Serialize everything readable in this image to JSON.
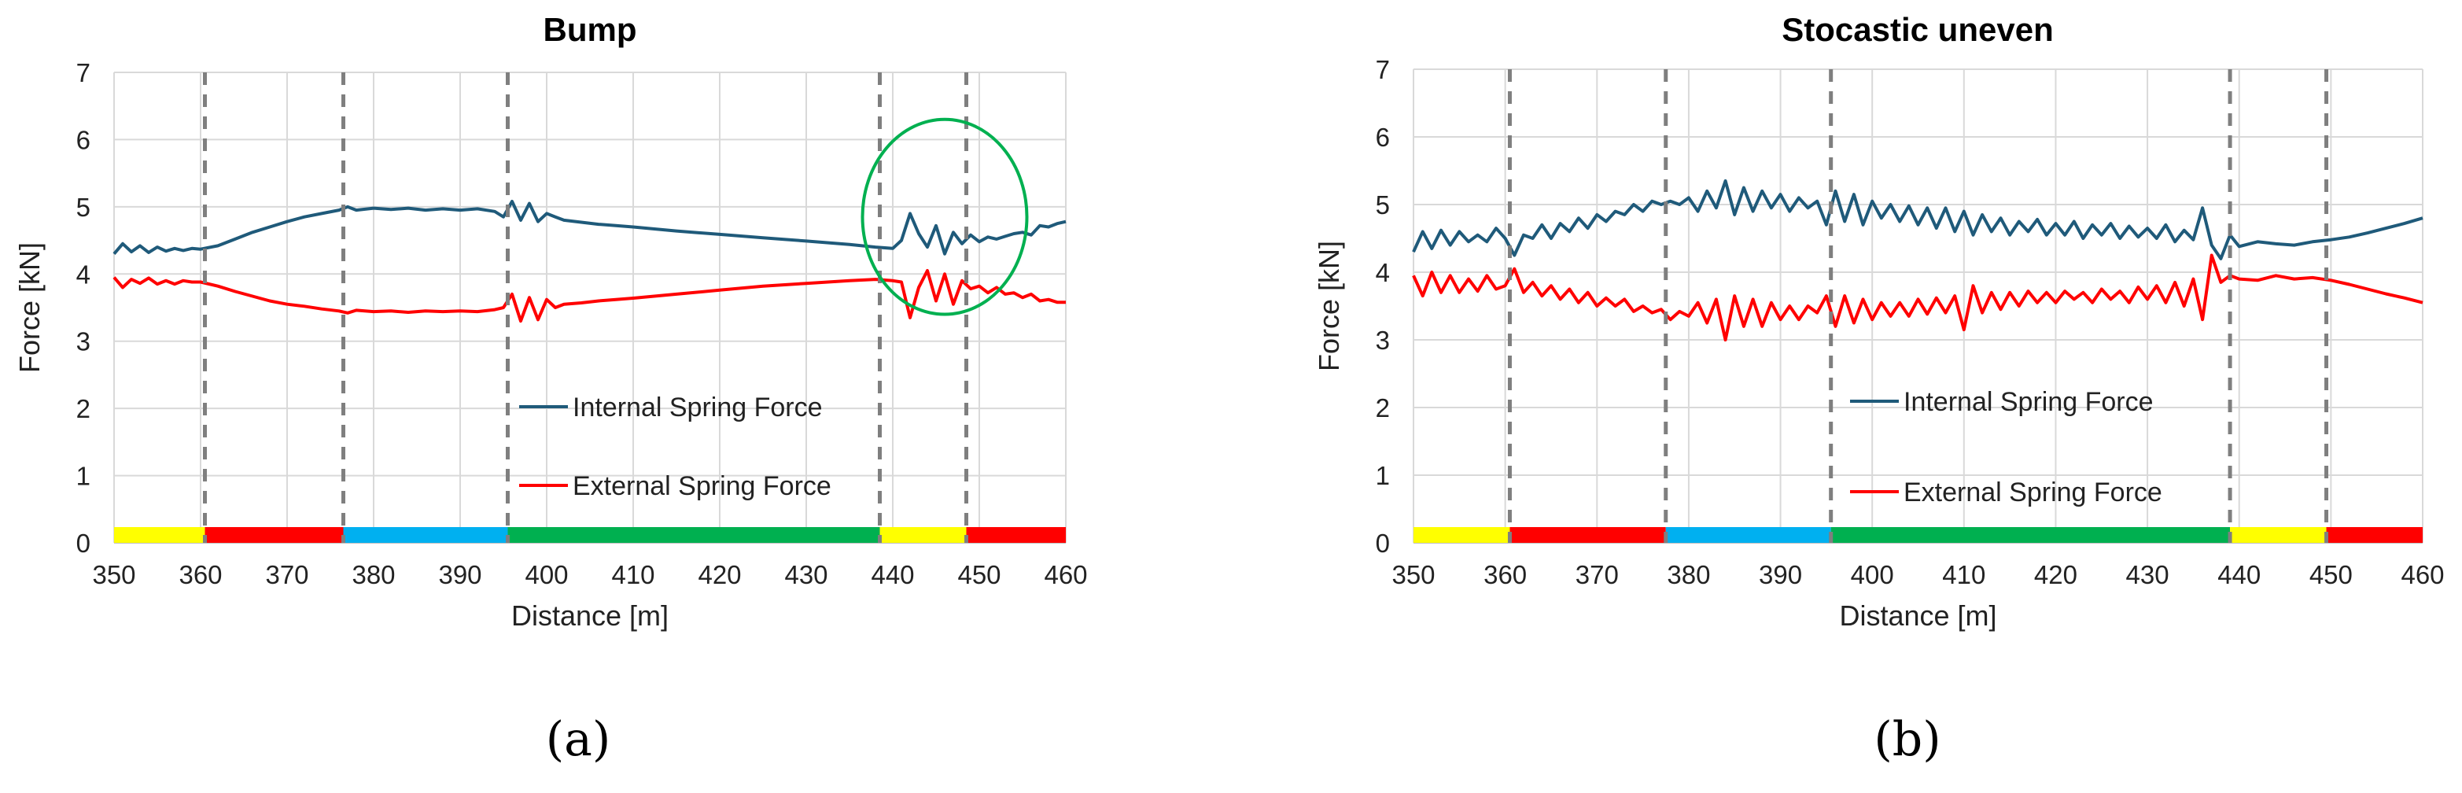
{
  "chart_data": [
    {
      "type": "line",
      "panel_label": "(a)",
      "title": "Bump",
      "xlabel": "Distance [m]",
      "ylabel": "Force [kN]",
      "xlim": [
        350,
        460
      ],
      "ylim": [
        0,
        7
      ],
      "xticks": [
        350,
        360,
        370,
        380,
        390,
        400,
        410,
        420,
        430,
        440,
        450,
        460
      ],
      "yticks": [
        0,
        1,
        2,
        3,
        4,
        5,
        6,
        7
      ],
      "grid": true,
      "legend_position": "center-right",
      "vertical_dashed_lines": [
        360.5,
        376.5,
        395.5,
        438.5,
        448.5
      ],
      "track_segments": [
        {
          "from": 350,
          "to": 360.5,
          "color": "#ffff00"
        },
        {
          "from": 360.5,
          "to": 376.5,
          "color": "#ff0000"
        },
        {
          "from": 376.5,
          "to": 395.5,
          "color": "#00b0f0"
        },
        {
          "from": 395.5,
          "to": 438.5,
          "color": "#00b050"
        },
        {
          "from": 438.5,
          "to": 448.5,
          "color": "#ffff00"
        },
        {
          "from": 448.5,
          "to": 460,
          "color": "#ff0000"
        }
      ],
      "annotation_ellipse": {
        "cx": 446,
        "cy": 4.85,
        "rx": 9.5,
        "ry": 1.45,
        "color": "#00b050"
      },
      "series": [
        {
          "name": "Internal Spring Force",
          "color": "#1f5a7a",
          "x": [
            350,
            351,
            352,
            353,
            354,
            355,
            356,
            357,
            358,
            359,
            360,
            362,
            364,
            366,
            368,
            370,
            372,
            374,
            376,
            377,
            378,
            380,
            382,
            384,
            386,
            388,
            390,
            392,
            394,
            395,
            396,
            397,
            398,
            399,
            400,
            401,
            402,
            404,
            406,
            408,
            410,
            415,
            420,
            425,
            430,
            435,
            438,
            440,
            441,
            442,
            443,
            444,
            445,
            446,
            447,
            448,
            449,
            450,
            451,
            452,
            453,
            454,
            455,
            456,
            457,
            458,
            459,
            460
          ],
          "y": [
            4.3,
            4.45,
            4.33,
            4.42,
            4.32,
            4.4,
            4.34,
            4.38,
            4.35,
            4.38,
            4.37,
            4.42,
            4.52,
            4.62,
            4.7,
            4.78,
            4.85,
            4.9,
            4.95,
            5.0,
            4.95,
            4.98,
            4.96,
            4.98,
            4.95,
            4.97,
            4.95,
            4.97,
            4.93,
            4.85,
            5.08,
            4.8,
            5.05,
            4.78,
            4.9,
            4.85,
            4.8,
            4.77,
            4.74,
            4.72,
            4.7,
            4.64,
            4.59,
            4.54,
            4.49,
            4.44,
            4.4,
            4.38,
            4.5,
            4.9,
            4.6,
            4.4,
            4.72,
            4.3,
            4.62,
            4.45,
            4.58,
            4.48,
            4.55,
            4.52,
            4.56,
            4.6,
            4.62,
            4.58,
            4.72,
            4.7,
            4.75,
            4.78
          ]
        },
        {
          "name": "External Spring Force",
          "color": "#ff0000",
          "x": [
            350,
            351,
            352,
            353,
            354,
            355,
            356,
            357,
            358,
            359,
            360,
            362,
            364,
            366,
            368,
            370,
            372,
            374,
            376,
            377,
            378,
            380,
            382,
            384,
            386,
            388,
            390,
            392,
            394,
            395,
            396,
            397,
            398,
            399,
            400,
            401,
            402,
            404,
            406,
            408,
            410,
            415,
            420,
            425,
            430,
            435,
            438,
            440,
            441,
            442,
            443,
            444,
            445,
            446,
            447,
            448,
            449,
            450,
            451,
            452,
            453,
            454,
            455,
            456,
            457,
            458,
            459,
            460
          ],
          "y": [
            3.95,
            3.8,
            3.92,
            3.86,
            3.94,
            3.85,
            3.9,
            3.85,
            3.9,
            3.88,
            3.88,
            3.82,
            3.74,
            3.67,
            3.6,
            3.55,
            3.52,
            3.48,
            3.45,
            3.42,
            3.46,
            3.44,
            3.45,
            3.43,
            3.45,
            3.44,
            3.45,
            3.44,
            3.47,
            3.5,
            3.7,
            3.3,
            3.65,
            3.32,
            3.62,
            3.5,
            3.55,
            3.57,
            3.6,
            3.62,
            3.64,
            3.7,
            3.76,
            3.82,
            3.86,
            3.9,
            3.92,
            3.9,
            3.88,
            3.35,
            3.8,
            4.05,
            3.6,
            4.0,
            3.55,
            3.9,
            3.78,
            3.82,
            3.72,
            3.8,
            3.7,
            3.72,
            3.65,
            3.7,
            3.6,
            3.62,
            3.58,
            3.58
          ]
        }
      ]
    },
    {
      "type": "line",
      "panel_label": "(b)",
      "title": "Stocastic uneven",
      "xlabel": "Distance [m]",
      "ylabel": "Force [kN]",
      "xlim": [
        350,
        460
      ],
      "ylim": [
        0,
        7
      ],
      "xticks": [
        350,
        360,
        370,
        380,
        390,
        400,
        410,
        420,
        430,
        440,
        450,
        460
      ],
      "yticks": [
        0,
        1,
        2,
        3,
        4,
        5,
        6,
        7
      ],
      "grid": true,
      "legend_position": "center-right",
      "vertical_dashed_lines": [
        360.5,
        377.5,
        395.5,
        439,
        449.5
      ],
      "track_segments": [
        {
          "from": 350,
          "to": 360.5,
          "color": "#ffff00"
        },
        {
          "from": 360.5,
          "to": 377.5,
          "color": "#ff0000"
        },
        {
          "from": 377.5,
          "to": 395.5,
          "color": "#00b0f0"
        },
        {
          "from": 395.5,
          "to": 439,
          "color": "#00b050"
        },
        {
          "from": 439,
          "to": 449.5,
          "color": "#ffff00"
        },
        {
          "from": 449.5,
          "to": 460,
          "color": "#ff0000"
        }
      ],
      "series": [
        {
          "name": "Internal Spring Force",
          "color": "#1f5a7a",
          "x": [
            350,
            351,
            352,
            353,
            354,
            355,
            356,
            357,
            358,
            359,
            360,
            361,
            362,
            363,
            364,
            365,
            366,
            367,
            368,
            369,
            370,
            371,
            372,
            373,
            374,
            375,
            376,
            377,
            378,
            379,
            380,
            381,
            382,
            383,
            384,
            385,
            386,
            387,
            388,
            389,
            390,
            391,
            392,
            393,
            394,
            395,
            396,
            397,
            398,
            399,
            400,
            401,
            402,
            403,
            404,
            405,
            406,
            407,
            408,
            409,
            410,
            411,
            412,
            413,
            414,
            415,
            416,
            417,
            418,
            419,
            420,
            421,
            422,
            423,
            424,
            425,
            426,
            427,
            428,
            429,
            430,
            431,
            432,
            433,
            434,
            435,
            436,
            437,
            438,
            439,
            440,
            442,
            444,
            446,
            448,
            450,
            452,
            454,
            456,
            458,
            460
          ],
          "y": [
            4.3,
            4.6,
            4.35,
            4.62,
            4.4,
            4.6,
            4.45,
            4.55,
            4.45,
            4.65,
            4.5,
            4.25,
            4.55,
            4.5,
            4.7,
            4.5,
            4.72,
            4.6,
            4.8,
            4.65,
            4.85,
            4.75,
            4.9,
            4.85,
            5.0,
            4.9,
            5.05,
            5.0,
            5.05,
            5.0,
            5.1,
            4.9,
            5.2,
            4.95,
            5.35,
            4.85,
            5.25,
            4.9,
            5.2,
            4.95,
            5.15,
            4.9,
            5.1,
            4.95,
            5.05,
            4.7,
            5.2,
            4.75,
            5.15,
            4.7,
            5.05,
            4.8,
            5.0,
            4.75,
            4.98,
            4.7,
            4.95,
            4.65,
            4.95,
            4.6,
            4.9,
            4.55,
            4.85,
            4.6,
            4.8,
            4.55,
            4.75,
            4.6,
            4.78,
            4.55,
            4.72,
            4.55,
            4.75,
            4.5,
            4.7,
            4.55,
            4.72,
            4.5,
            4.68,
            4.52,
            4.65,
            4.5,
            4.7,
            4.45,
            4.62,
            4.48,
            4.95,
            4.4,
            4.2,
            4.55,
            4.38,
            4.45,
            4.42,
            4.4,
            4.45,
            4.48,
            4.52,
            4.58,
            4.65,
            4.72,
            4.8
          ]
        },
        {
          "name": "External Spring Force",
          "color": "#ff0000",
          "x": [
            350,
            351,
            352,
            353,
            354,
            355,
            356,
            357,
            358,
            359,
            360,
            361,
            362,
            363,
            364,
            365,
            366,
            367,
            368,
            369,
            370,
            371,
            372,
            373,
            374,
            375,
            376,
            377,
            378,
            379,
            380,
            381,
            382,
            383,
            384,
            385,
            386,
            387,
            388,
            389,
            390,
            391,
            392,
            393,
            394,
            395,
            396,
            397,
            398,
            399,
            400,
            401,
            402,
            403,
            404,
            405,
            406,
            407,
            408,
            409,
            410,
            411,
            412,
            413,
            414,
            415,
            416,
            417,
            418,
            419,
            420,
            421,
            422,
            423,
            424,
            425,
            426,
            427,
            428,
            429,
            430,
            431,
            432,
            433,
            434,
            435,
            436,
            437,
            438,
            439,
            440,
            442,
            444,
            446,
            448,
            450,
            452,
            454,
            456,
            458,
            460
          ],
          "y": [
            3.95,
            3.65,
            4.0,
            3.7,
            3.95,
            3.7,
            3.9,
            3.72,
            3.95,
            3.75,
            3.8,
            4.05,
            3.7,
            3.85,
            3.65,
            3.8,
            3.6,
            3.75,
            3.55,
            3.7,
            3.5,
            3.62,
            3.5,
            3.6,
            3.42,
            3.5,
            3.4,
            3.45,
            3.3,
            3.42,
            3.35,
            3.55,
            3.25,
            3.6,
            3.0,
            3.65,
            3.2,
            3.6,
            3.2,
            3.55,
            3.3,
            3.5,
            3.3,
            3.5,
            3.4,
            3.65,
            3.2,
            3.65,
            3.25,
            3.6,
            3.3,
            3.55,
            3.35,
            3.55,
            3.35,
            3.6,
            3.38,
            3.62,
            3.4,
            3.65,
            3.15,
            3.8,
            3.4,
            3.7,
            3.45,
            3.7,
            3.5,
            3.72,
            3.55,
            3.7,
            3.55,
            3.72,
            3.6,
            3.7,
            3.55,
            3.75,
            3.6,
            3.72,
            3.55,
            3.78,
            3.6,
            3.8,
            3.55,
            3.85,
            3.5,
            3.9,
            3.3,
            4.25,
            3.85,
            3.95,
            3.9,
            3.88,
            3.95,
            3.9,
            3.92,
            3.88,
            3.82,
            3.75,
            3.68,
            3.62,
            3.55
          ]
        }
      ]
    }
  ]
}
